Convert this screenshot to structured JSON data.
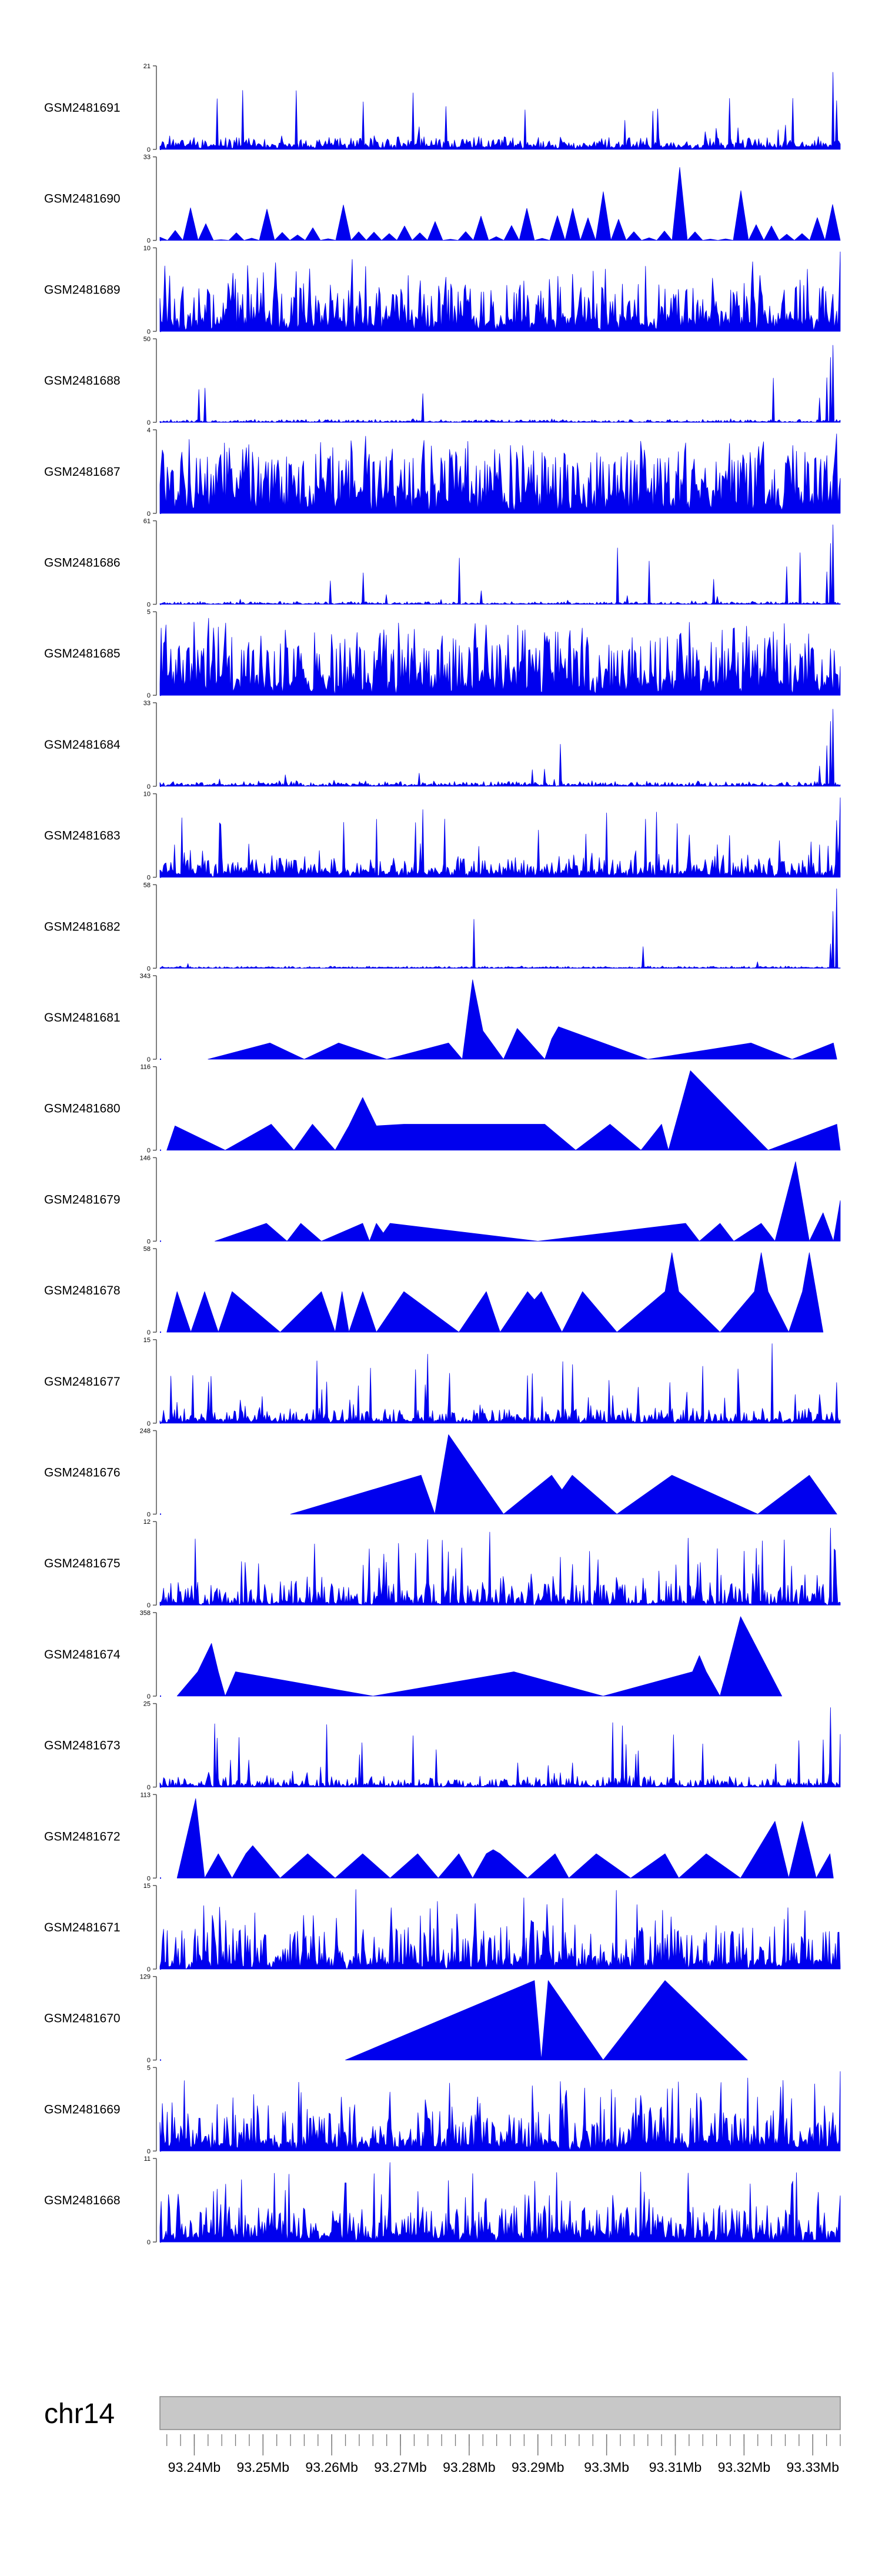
{
  "chart_data": {
    "type": "area",
    "title": "",
    "chromosome": "chr14",
    "x_unit": "Mb",
    "x_range": [
      93.235,
      93.334
    ],
    "x_ticks": [
      93.24,
      93.25,
      93.26,
      93.27,
      93.28,
      93.29,
      93.3,
      93.31,
      93.32,
      93.33
    ],
    "x_tick_labels": [
      "93.24Mb",
      "93.25Mb",
      "93.26Mb",
      "93.27Mb",
      "93.28Mb",
      "93.29Mb",
      "93.3Mb",
      "93.31Mb",
      "93.32Mb",
      "93.33Mb"
    ],
    "minor_tick_step": 0.002,
    "series_color": "#0000ee",
    "tracks": [
      {
        "name": "GSM2481691",
        "ymax": 21,
        "ymin": 0,
        "style": "dense",
        "base": 0.06,
        "noise": 0.12,
        "spike": 0.05,
        "seed": 1,
        "peaks": [
          [
            93.333,
            0.95
          ],
          [
            93.3335,
            0.6
          ],
          [
            93.326,
            0.3
          ]
        ]
      },
      {
        "name": "GSM2481690",
        "ymax": 33,
        "ymin": 0,
        "style": "medium",
        "base": 0.1,
        "noise": 0.35,
        "spike": 0.1,
        "seed": 2,
        "peaks": [
          [
            93.311,
            0.9
          ],
          [
            93.3,
            0.6
          ]
        ]
      },
      {
        "name": "GSM2481689",
        "ymax": 10,
        "ymin": 0,
        "style": "dense",
        "base": 0.18,
        "noise": 0.45,
        "spike": 0.12,
        "seed": 3,
        "peaks": [
          [
            93.334,
            0.98
          ],
          [
            93.265,
            0.8
          ]
        ]
      },
      {
        "name": "GSM2481688",
        "ymax": 50,
        "ymin": 0,
        "style": "dense",
        "base": 0.01,
        "noise": 0.03,
        "spike": 0.02,
        "seed": 4,
        "peaks": [
          [
            93.333,
            0.95
          ],
          [
            93.3325,
            0.8
          ],
          [
            93.332,
            0.55
          ],
          [
            93.331,
            0.3
          ]
        ]
      },
      {
        "name": "GSM2481687",
        "ymax": 4,
        "ymin": 0,
        "style": "dense",
        "base": 0.3,
        "noise": 0.6,
        "spike": 0.2,
        "seed": 5,
        "peaks": [
          [
            93.3335,
            0.98
          ],
          [
            93.265,
            0.95
          ]
        ]
      },
      {
        "name": "GSM2481686",
        "ymax": 61,
        "ymin": 0,
        "style": "dense",
        "base": 0.01,
        "noise": 0.03,
        "spike": 0.02,
        "seed": 6,
        "peaks": [
          [
            93.333,
            0.98
          ],
          [
            93.3325,
            0.75
          ],
          [
            93.332,
            0.4
          ]
        ]
      },
      {
        "name": "GSM2481685",
        "ymax": 5,
        "ymin": 0,
        "style": "dense",
        "base": 0.25,
        "noise": 0.55,
        "spike": 0.2,
        "seed": 7,
        "peaks": [
          [
            93.242,
            0.95
          ],
          [
            93.312,
            0.9
          ]
        ]
      },
      {
        "name": "GSM2481684",
        "ymax": 33,
        "ymin": 0,
        "style": "dense",
        "base": 0.02,
        "noise": 0.05,
        "spike": 0.03,
        "seed": 8,
        "peaks": [
          [
            93.333,
            0.95
          ],
          [
            93.3325,
            0.8
          ],
          [
            93.332,
            0.5
          ],
          [
            93.331,
            0.25
          ]
        ]
      },
      {
        "name": "GSM2481683",
        "ymax": 10,
        "ymin": 0,
        "style": "dense",
        "base": 0.08,
        "noise": 0.2,
        "spike": 0.08,
        "seed": 9,
        "peaks": [
          [
            93.334,
            0.98
          ],
          [
            93.3335,
            0.7
          ],
          [
            93.331,
            0.4
          ]
        ]
      },
      {
        "name": "GSM2481682",
        "ymax": 58,
        "ymin": 0,
        "style": "dense",
        "base": 0.01,
        "noise": 0.02,
        "spike": 0.01,
        "seed": 10,
        "peaks": [
          [
            93.3335,
            0.98
          ],
          [
            93.333,
            0.7
          ],
          [
            93.3325,
            0.3
          ],
          [
            93.322,
            0.08
          ]
        ]
      },
      {
        "name": "GSM2481681",
        "ymax": 343,
        "ymin": 0,
        "style": "sparse",
        "seed": 11,
        "peaks": [
          [
            93.242,
            0
          ],
          [
            93.251,
            0.2
          ],
          [
            93.256,
            0
          ],
          [
            93.261,
            0.2
          ],
          [
            93.268,
            0
          ],
          [
            93.277,
            0.2
          ],
          [
            93.279,
            0
          ],
          [
            93.2805,
            0.98
          ],
          [
            93.282,
            0.35
          ],
          [
            93.285,
            0
          ],
          [
            93.287,
            0.38
          ],
          [
            93.291,
            0
          ],
          [
            93.292,
            0.25
          ],
          [
            93.293,
            0.4
          ],
          [
            93.306,
            0
          ],
          [
            93.321,
            0.2
          ],
          [
            93.327,
            0
          ],
          [
            93.333,
            0.2
          ],
          [
            93.3335,
            0
          ]
        ]
      },
      {
        "name": "GSM2481680",
        "ymax": 116,
        "ymin": 0,
        "style": "sparse",
        "seed": 12,
        "peaks": [
          [
            93.236,
            0
          ],
          [
            93.2372,
            0.3
          ],
          [
            93.2445,
            0
          ],
          [
            93.2512,
            0.32
          ],
          [
            93.2545,
            0
          ],
          [
            93.2572,
            0.32
          ],
          [
            93.2605,
            0
          ],
          [
            93.2625,
            0.3
          ],
          [
            93.2645,
            0.65
          ],
          [
            93.2665,
            0.3
          ],
          [
            93.2705,
            0.32
          ],
          [
            93.2745,
            0.32
          ],
          [
            93.2785,
            0.32
          ],
          [
            93.2825,
            0.32
          ],
          [
            93.2865,
            0.32
          ],
          [
            93.291,
            0.32
          ],
          [
            93.2955,
            0
          ],
          [
            93.3005,
            0.32
          ],
          [
            93.305,
            0
          ],
          [
            93.308,
            0.32
          ],
          [
            93.309,
            0
          ],
          [
            93.3122,
            0.98
          ],
          [
            93.3235,
            0
          ],
          [
            93.3335,
            0.32
          ],
          [
            93.334,
            0
          ]
        ]
      },
      {
        "name": "GSM2481679",
        "ymax": 146,
        "ymin": 0,
        "style": "sparse",
        "seed": 13,
        "peaks": [
          [
            93.243,
            0
          ],
          [
            93.2505,
            0.22
          ],
          [
            93.2535,
            0
          ],
          [
            93.2555,
            0.22
          ],
          [
            93.2585,
            0
          ],
          [
            93.2645,
            0.22
          ],
          [
            93.2655,
            0
          ],
          [
            93.2665,
            0.22
          ],
          [
            93.2675,
            0.1
          ],
          [
            93.2685,
            0.22
          ],
          [
            93.29,
            0
          ],
          [
            93.3115,
            0.22
          ],
          [
            93.3135,
            0
          ],
          [
            93.3165,
            0.22
          ],
          [
            93.3185,
            0
          ],
          [
            93.3225,
            0.22
          ],
          [
            93.3245,
            0
          ],
          [
            93.3275,
            0.98
          ],
          [
            93.3295,
            0
          ],
          [
            93.3315,
            0.35
          ],
          [
            93.333,
            0
          ],
          [
            93.334,
            0.5
          ]
        ]
      },
      {
        "name": "GSM2481678",
        "ymax": 58,
        "ymin": 0,
        "style": "sparse",
        "seed": 14,
        "peaks": [
          [
            93.236,
            0
          ],
          [
            93.2375,
            0.5
          ],
          [
            93.2395,
            0
          ],
          [
            93.2415,
            0.5
          ],
          [
            93.2435,
            0
          ],
          [
            93.2455,
            0.5
          ],
          [
            93.2525,
            0
          ],
          [
            93.2585,
            0.5
          ],
          [
            93.2605,
            0
          ],
          [
            93.2615,
            0.5
          ],
          [
            93.2625,
            0
          ],
          [
            93.2645,
            0.5
          ],
          [
            93.2665,
            0
          ],
          [
            93.2705,
            0.5
          ],
          [
            93.2785,
            0
          ],
          [
            93.2825,
            0.5
          ],
          [
            93.2845,
            0
          ],
          [
            93.2885,
            0.5
          ],
          [
            93.2895,
            0.4
          ],
          [
            93.2905,
            0.5
          ],
          [
            93.2935,
            0
          ],
          [
            93.2965,
            0.5
          ],
          [
            93.3015,
            0
          ],
          [
            93.3085,
            0.5
          ],
          [
            93.3095,
            0.98
          ],
          [
            93.3105,
            0.5
          ],
          [
            93.3165,
            0
          ],
          [
            93.3215,
            0.5
          ],
          [
            93.3225,
            0.98
          ],
          [
            93.3235,
            0.5
          ],
          [
            93.3265,
            0
          ],
          [
            93.3285,
            0.5
          ],
          [
            93.3295,
            0.98
          ],
          [
            93.3315,
            0
          ]
        ]
      },
      {
        "name": "GSM2481677",
        "ymax": 15,
        "ymin": 0,
        "style": "dense",
        "base": 0.05,
        "noise": 0.15,
        "spike": 0.08,
        "seed": 15,
        "peaks": [
          [
            93.324,
            0.98
          ],
          [
            93.274,
            0.85
          ],
          [
            93.3335,
            0.5
          ]
        ]
      },
      {
        "name": "GSM2481676",
        "ymax": 248,
        "ymin": 0,
        "style": "sparse",
        "seed": 16,
        "peaks": [
          [
            93.254,
            0
          ],
          [
            93.273,
            0.48
          ],
          [
            93.275,
            0
          ],
          [
            93.277,
            0.98
          ],
          [
            93.285,
            0
          ],
          [
            93.292,
            0.48
          ],
          [
            93.2935,
            0.3
          ],
          [
            93.295,
            0.48
          ],
          [
            93.3015,
            0
          ],
          [
            93.3095,
            0.48
          ],
          [
            93.322,
            0
          ],
          [
            93.3295,
            0.48
          ],
          [
            93.3335,
            0
          ]
        ]
      },
      {
        "name": "GSM2481675",
        "ymax": 12,
        "ymin": 0,
        "style": "dense",
        "base": 0.04,
        "noise": 0.25,
        "spike": 0.1,
        "seed": 17,
        "peaks": [
          [
            93.3325,
            0.95
          ],
          [
            93.283,
            0.9
          ],
          [
            93.276,
            0.8
          ]
        ]
      },
      {
        "name": "GSM2481674",
        "ymax": 358,
        "ymin": 0,
        "style": "sparse",
        "seed": 18,
        "peaks": [
          [
            93.2375,
            0
          ],
          [
            93.2405,
            0.3
          ],
          [
            93.2425,
            0.65
          ],
          [
            93.2435,
            0.3
          ],
          [
            93.2445,
            0
          ],
          [
            93.246,
            0.3
          ],
          [
            93.266,
            0
          ],
          [
            93.2865,
            0.3
          ],
          [
            93.2995,
            0
          ],
          [
            93.3125,
            0.3
          ],
          [
            93.3135,
            0.5
          ],
          [
            93.3145,
            0.3
          ],
          [
            93.3165,
            0
          ],
          [
            93.3195,
            0.98
          ],
          [
            93.3255,
            0
          ]
        ]
      },
      {
        "name": "GSM2481673",
        "ymax": 25,
        "ymin": 0,
        "style": "dense",
        "base": 0.03,
        "noise": 0.12,
        "spike": 0.06,
        "seed": 19,
        "peaks": [
          [
            93.3325,
            0.98
          ],
          [
            93.334,
            0.65
          ],
          [
            93.243,
            0.78
          ]
        ]
      },
      {
        "name": "GSM2481672",
        "ymax": 113,
        "ymin": 0,
        "style": "sparse",
        "seed": 20,
        "peaks": [
          [
            93.2375,
            0
          ],
          [
            93.2402,
            0.98
          ],
          [
            93.2415,
            0
          ],
          [
            93.2435,
            0.3
          ],
          [
            93.2455,
            0
          ],
          [
            93.2475,
            0.3
          ],
          [
            93.2485,
            0.4
          ],
          [
            93.2495,
            0.3
          ],
          [
            93.2525,
            0
          ],
          [
            93.2565,
            0.3
          ],
          [
            93.2605,
            0
          ],
          [
            93.2645,
            0.3
          ],
          [
            93.2685,
            0
          ],
          [
            93.2725,
            0.3
          ],
          [
            93.2755,
            0
          ],
          [
            93.2785,
            0.3
          ],
          [
            93.2805,
            0
          ],
          [
            93.2825,
            0.3
          ],
          [
            93.2835,
            0.35
          ],
          [
            93.2845,
            0.3
          ],
          [
            93.2885,
            0
          ],
          [
            93.2925,
            0.3
          ],
          [
            93.2945,
            0
          ],
          [
            93.2985,
            0.3
          ],
          [
            93.3035,
            0
          ],
          [
            93.3085,
            0.3
          ],
          [
            93.3105,
            0
          ],
          [
            93.3145,
            0.3
          ],
          [
            93.3195,
            0
          ],
          [
            93.3245,
            0.7
          ],
          [
            93.3265,
            0
          ],
          [
            93.3285,
            0.7
          ],
          [
            93.3305,
            0
          ],
          [
            93.3325,
            0.3
          ],
          [
            93.333,
            0
          ]
        ]
      },
      {
        "name": "GSM2481671",
        "ymax": 15,
        "ymin": 0,
        "style": "dense",
        "base": 0.1,
        "noise": 0.45,
        "spike": 0.12,
        "seed": 21,
        "peaks": [
          [
            93.2635,
            0.98
          ],
          [
            93.3015,
            0.97
          ],
          [
            93.2775,
            0.5
          ]
        ]
      },
      {
        "name": "GSM2481670",
        "ymax": 129,
        "ymin": 0,
        "style": "sparse",
        "seed": 22,
        "peaks": [
          [
            93.262,
            0
          ],
          [
            93.2895,
            0.98
          ],
          [
            93.2905,
            0
          ],
          [
            93.2915,
            0.98
          ],
          [
            93.2995,
            0
          ],
          [
            93.3085,
            0.98
          ],
          [
            93.3205,
            0
          ]
        ]
      },
      {
        "name": "GSM2481669",
        "ymax": 5,
        "ymin": 0,
        "style": "dense",
        "base": 0.12,
        "noise": 0.4,
        "spike": 0.15,
        "seed": 23,
        "peaks": [
          [
            93.334,
            0.98
          ],
          [
            93.3205,
            0.9
          ]
        ]
      },
      {
        "name": "GSM2481668",
        "ymax": 11,
        "ymin": 0,
        "style": "dense",
        "base": 0.12,
        "noise": 0.35,
        "spike": 0.12,
        "seed": 24,
        "peaks": [
          [
            93.2685,
            0.98
          ],
          [
            93.2895,
            0.75
          ]
        ]
      }
    ]
  }
}
